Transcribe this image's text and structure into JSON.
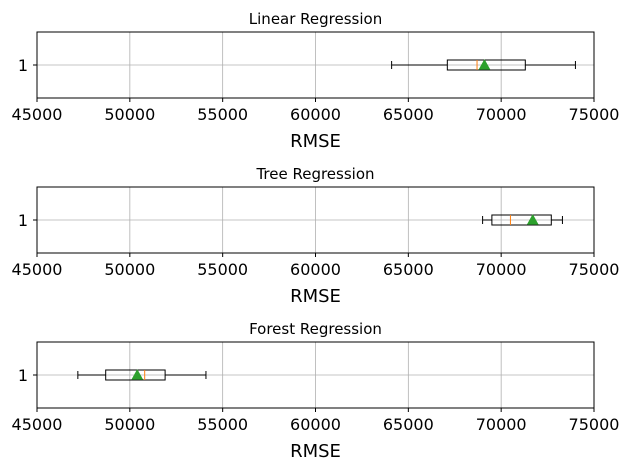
{
  "chart_data": [
    {
      "type": "boxplot",
      "orientation": "horizontal",
      "title": "Linear Regression",
      "xlabel": "RMSE",
      "ylabel": "",
      "xlim": [
        45000,
        75000
      ],
      "xticks": [
        45000,
        50000,
        55000,
        60000,
        65000,
        70000,
        75000
      ],
      "categories": [
        "1"
      ],
      "grid": true,
      "showmeans": true,
      "box": {
        "whisker_low": 64100,
        "q1": 67100,
        "median": 68700,
        "mean": 69100,
        "q3": 71300,
        "whisker_high": 74000
      }
    },
    {
      "type": "boxplot",
      "orientation": "horizontal",
      "title": "Tree Regression",
      "xlabel": "RMSE",
      "ylabel": "",
      "xlim": [
        45000,
        75000
      ],
      "xticks": [
        45000,
        50000,
        55000,
        60000,
        65000,
        70000,
        75000
      ],
      "categories": [
        "1"
      ],
      "grid": true,
      "showmeans": true,
      "box": {
        "whisker_low": 69000,
        "q1": 69500,
        "median": 70500,
        "mean": 71700,
        "q3": 72700,
        "whisker_high": 73300
      }
    },
    {
      "type": "boxplot",
      "orientation": "horizontal",
      "title": "Forest Regression",
      "xlabel": "RMSE",
      "ylabel": "",
      "xlim": [
        45000,
        75000
      ],
      "xticks": [
        45000,
        50000,
        55000,
        60000,
        65000,
        70000,
        75000
      ],
      "categories": [
        "1"
      ],
      "grid": true,
      "showmeans": true,
      "box": {
        "whisker_low": 47200,
        "q1": 48700,
        "median": 50800,
        "mean": 50400,
        "q3": 51900,
        "whisker_high": 54100
      }
    }
  ],
  "colors": {
    "median": "#ff7f0e",
    "mean": "#2ca02c",
    "grid": "#b0b0b0",
    "box": "#000000"
  }
}
